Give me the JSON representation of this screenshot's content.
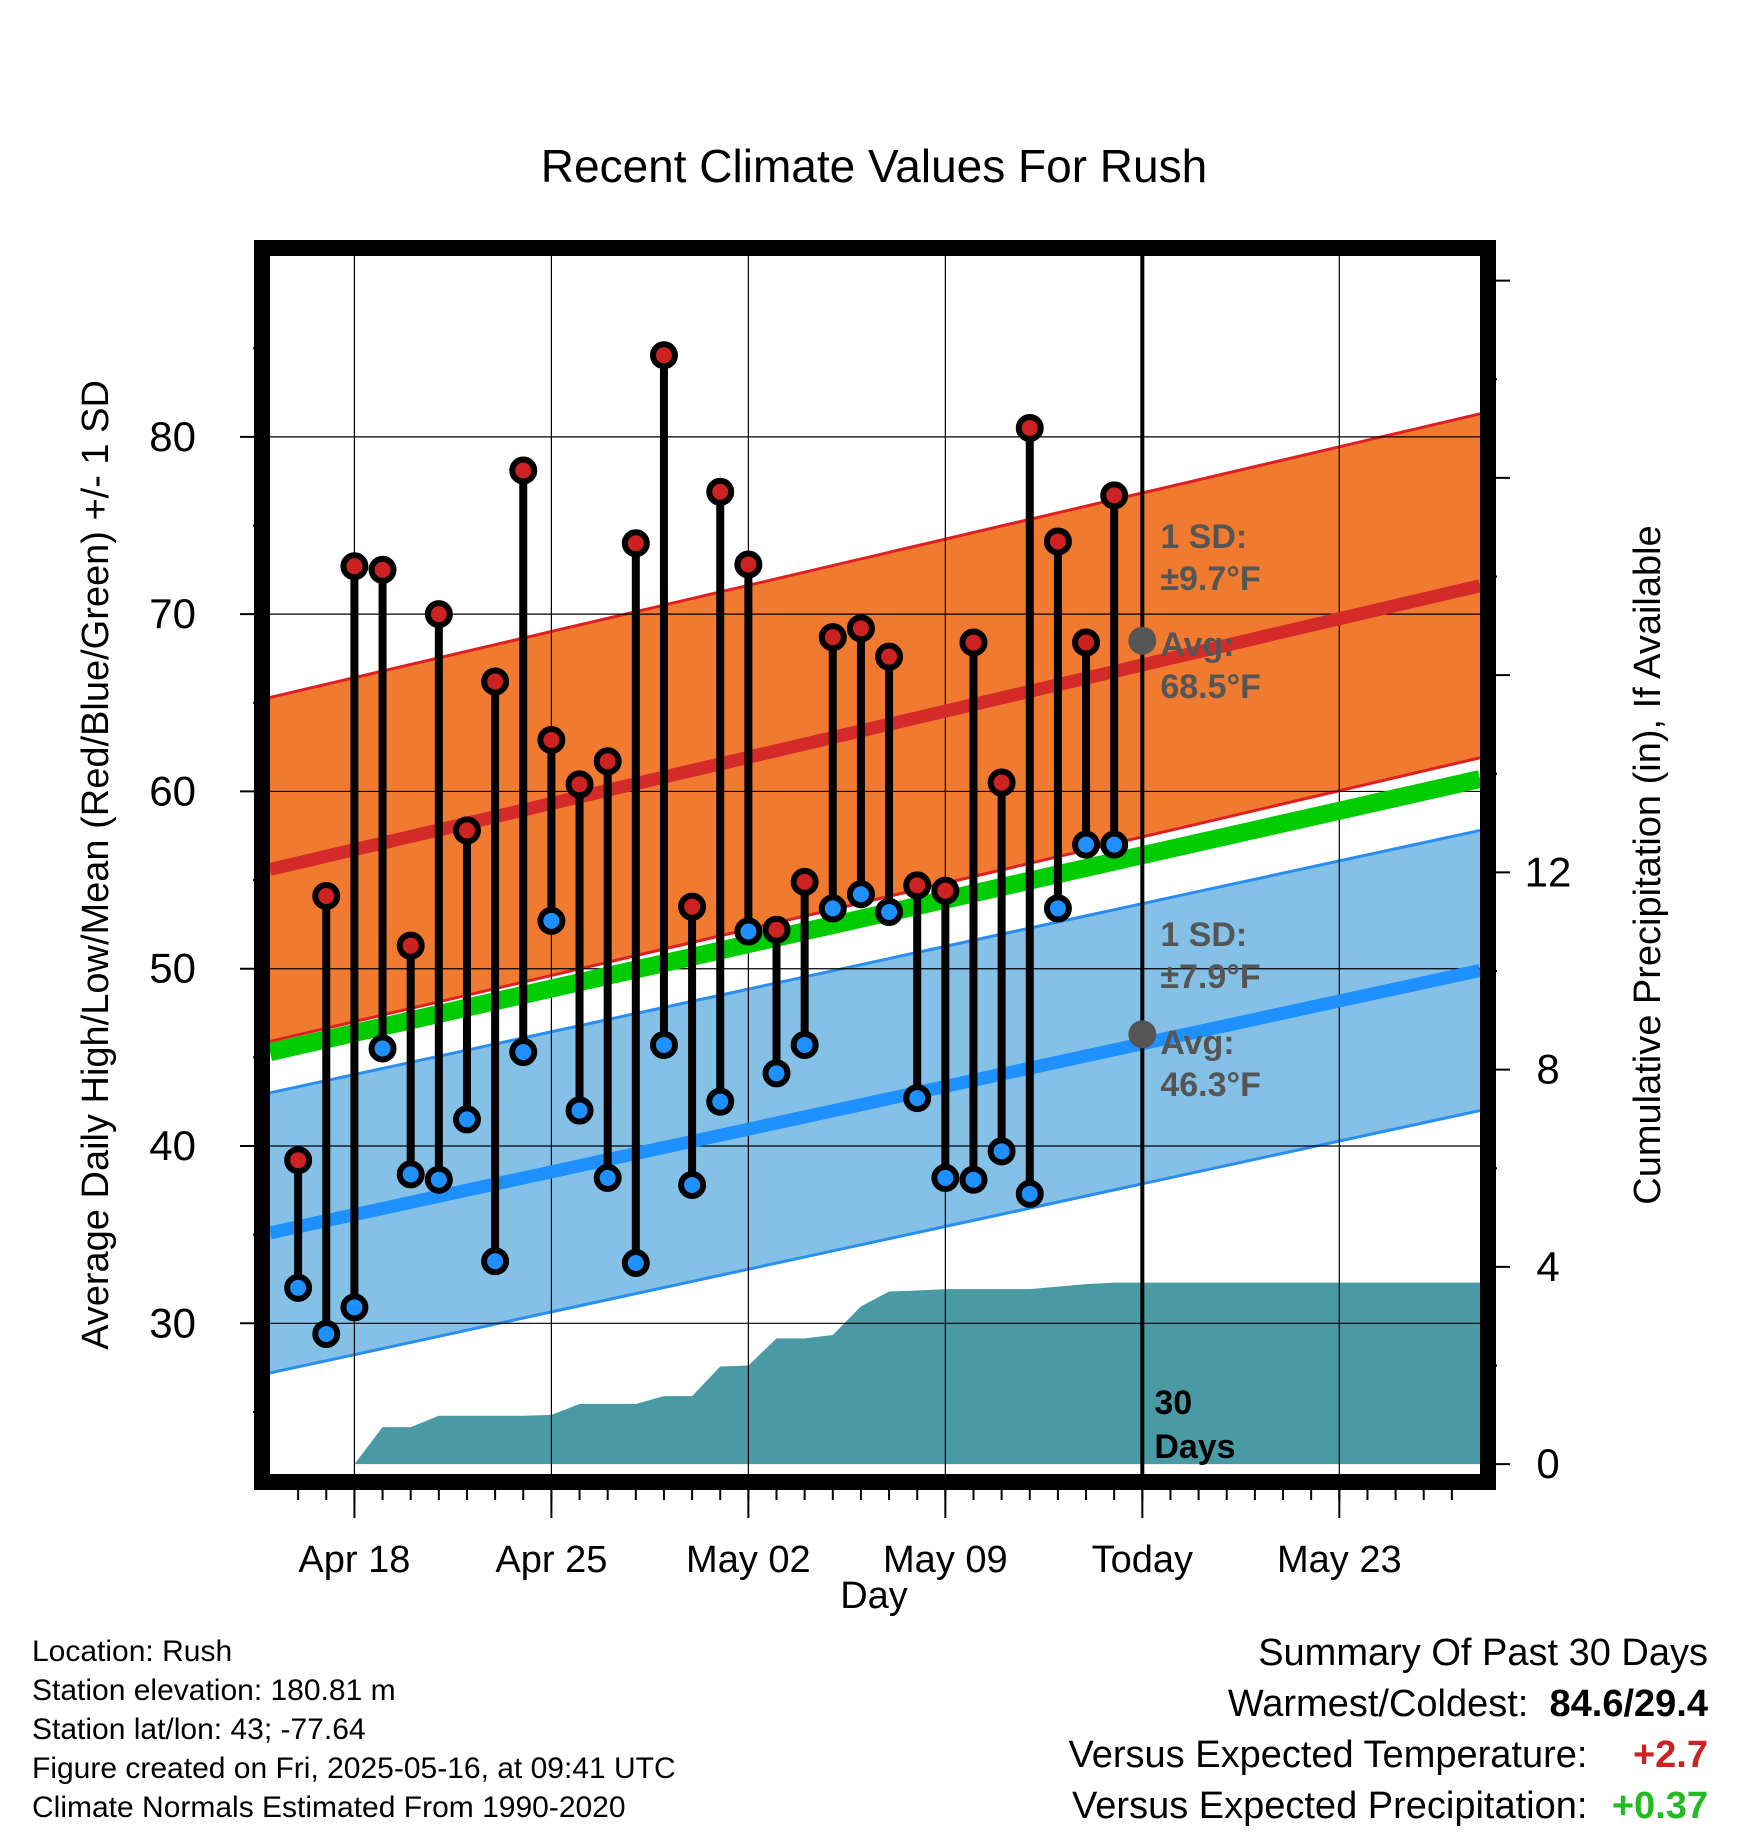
{
  "chart_data": {
    "type": "line",
    "title": "Recent Climate Values For Rush",
    "xlabel": "Day",
    "ylabel": "Average Daily High/Low/Mean (Red/Blue/Green) +/- 1 SD",
    "y2label": "Cumulative Precipitation (in), If Available",
    "xlim": [
      "2025-04-15",
      "2025-05-28"
    ],
    "ylim": [
      21.5,
      90.2
    ],
    "y2lim": [
      -0.2,
      24.5
    ],
    "x_tick_labels": [
      {
        "date": "2025-04-18",
        "label": "Apr 18"
      },
      {
        "date": "2025-04-25",
        "label": "Apr 25"
      },
      {
        "date": "2025-05-02",
        "label": "May 02"
      },
      {
        "date": "2025-05-09",
        "label": "May 09"
      },
      {
        "date": "2025-05-16",
        "label": "Today"
      },
      {
        "date": "2025-05-23",
        "label": "May 23"
      }
    ],
    "y_ticks": [
      30,
      40,
      50,
      60,
      70,
      80
    ],
    "y2_ticks": [
      0,
      4,
      8,
      12
    ],
    "grid": true,
    "today": "2025-05-16",
    "today_label": "30 Days",
    "series": [
      {
        "name": "High",
        "color": "#cc2222",
        "x": [
          "2025-04-16",
          "2025-04-17",
          "2025-04-18",
          "2025-04-19",
          "2025-04-20",
          "2025-04-21",
          "2025-04-22",
          "2025-04-23",
          "2025-04-24",
          "2025-04-25",
          "2025-04-26",
          "2025-04-27",
          "2025-04-28",
          "2025-04-29",
          "2025-04-30",
          "2025-05-01",
          "2025-05-02",
          "2025-05-03",
          "2025-05-04",
          "2025-05-05",
          "2025-05-06",
          "2025-05-07",
          "2025-05-08",
          "2025-05-09",
          "2025-05-10",
          "2025-05-11",
          "2025-05-12",
          "2025-05-13",
          "2025-05-14",
          "2025-05-15"
        ],
        "values": [
          39.2,
          54.1,
          72.7,
          72.5,
          51.3,
          70.0,
          57.8,
          66.2,
          78.1,
          62.9,
          60.4,
          61.7,
          74.0,
          84.6,
          53.5,
          76.9,
          72.8,
          52.2,
          54.9,
          68.7,
          69.2,
          67.6,
          54.7,
          54.4,
          68.4,
          60.5,
          80.5,
          74.1,
          68.4,
          76.7
        ]
      },
      {
        "name": "Low",
        "color": "#1e90ff",
        "x": [
          "2025-04-16",
          "2025-04-17",
          "2025-04-18",
          "2025-04-19",
          "2025-04-20",
          "2025-04-21",
          "2025-04-22",
          "2025-04-23",
          "2025-04-24",
          "2025-04-25",
          "2025-04-26",
          "2025-04-27",
          "2025-04-28",
          "2025-04-29",
          "2025-04-30",
          "2025-05-01",
          "2025-05-02",
          "2025-05-03",
          "2025-05-04",
          "2025-05-05",
          "2025-05-06",
          "2025-05-07",
          "2025-05-08",
          "2025-05-09",
          "2025-05-10",
          "2025-05-11",
          "2025-05-12",
          "2025-05-13",
          "2025-05-14",
          "2025-05-15"
        ],
        "values": [
          32.0,
          29.4,
          30.9,
          45.5,
          38.4,
          38.1,
          41.5,
          33.5,
          45.3,
          52.7,
          42.0,
          38.2,
          33.4,
          45.7,
          37.8,
          42.5,
          52.1,
          44.1,
          45.7,
          53.4,
          54.2,
          53.2,
          42.7,
          38.2,
          38.1,
          39.7,
          37.3,
          53.4,
          57.0,
          57.0
        ]
      },
      {
        "name": "Normal high",
        "color": "#d42a2a",
        "x": [
          "2025-04-15",
          "2025-05-28"
        ],
        "values": [
          55.6,
          71.6
        ],
        "sd": 9.7
      },
      {
        "name": "Normal low",
        "color": "#1e90ff",
        "x": [
          "2025-04-15",
          "2025-05-28"
        ],
        "values": [
          35.1,
          49.9
        ],
        "sd": 7.9
      },
      {
        "name": "Normal mean",
        "color": "#00cc00",
        "x": [
          "2025-04-15",
          "2025-05-28"
        ],
        "values": [
          45.3,
          60.7
        ]
      },
      {
        "name": "Cumulative precipitation",
        "color": "#4a9aa6",
        "axis": "y2",
        "x": [
          "2025-04-16",
          "2025-04-17",
          "2025-04-18",
          "2025-04-19",
          "2025-04-20",
          "2025-04-21",
          "2025-04-22",
          "2025-04-23",
          "2025-04-24",
          "2025-04-25",
          "2025-04-26",
          "2025-04-27",
          "2025-04-28",
          "2025-04-29",
          "2025-04-30",
          "2025-05-01",
          "2025-05-02",
          "2025-05-03",
          "2025-05-04",
          "2025-05-05",
          "2025-05-06",
          "2025-05-07",
          "2025-05-08",
          "2025-05-09",
          "2025-05-10",
          "2025-05-11",
          "2025-05-12",
          "2025-05-13",
          "2025-05-14",
          "2025-05-15",
          "2025-05-16",
          "2025-05-28"
        ],
        "values": [
          0,
          0,
          0,
          0.75,
          0.75,
          0.98,
          0.98,
          0.98,
          0.98,
          1.0,
          1.22,
          1.22,
          1.22,
          1.38,
          1.38,
          1.98,
          2.0,
          2.55,
          2.55,
          2.62,
          3.2,
          3.5,
          3.52,
          3.55,
          3.55,
          3.55,
          3.55,
          3.6,
          3.65,
          3.68,
          3.68,
          3.68
        ]
      }
    ],
    "annotations": {
      "high": {
        "sd_title": "1 SD:",
        "sd_value": "±9.7°F",
        "avg_title": "Avg:",
        "avg_value": "68.5°F",
        "avg": 68.5
      },
      "low": {
        "sd_title": "1 SD:",
        "sd_value": "±7.9°F",
        "avg_title": "Avg:",
        "avg_value": "46.3°F",
        "avg": 46.3
      }
    }
  },
  "footer_left": [
    "Location: Rush",
    "Station elevation: 180.81 m",
    "Station lat/lon: 43; -77.64",
    "Figure created on Fri, 2025-05-16, at 09:41 UTC",
    "Climate Normals Estimated From 1990-2020"
  ],
  "summary": {
    "title": "Summary Of Past 30 Days",
    "warm_cold_label": "Warmest/Coldest:",
    "warmest": "84.6",
    "coldest": "29.4",
    "temp_label": "Versus Expected Temperature:",
    "temp_value": "+2.7",
    "temp_color": "#cc2222",
    "precip_label": "Versus Expected Precipitation:",
    "precip_value": "+0.37",
    "precip_color": "#22bb22"
  }
}
